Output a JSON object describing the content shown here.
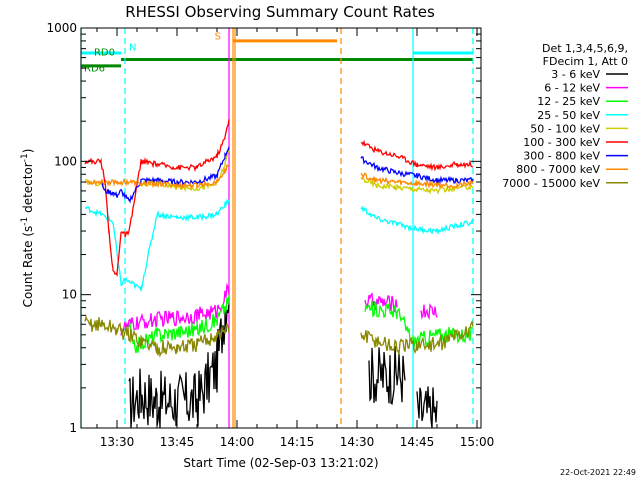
{
  "chart_data": {
    "type": "line",
    "title": "RHESSI Observing Summary Count Rates",
    "xlabel": "Start Time (02-Sep-03 13:21:02)",
    "ylabel": "Count Rate (s",
    "ylabel_sup1": "-1",
    "ylabel_mid": " detector",
    "ylabel_sup2": "-1",
    "ylabel_end": ")",
    "y_scale": "log",
    "xlim": [
      "13:21",
      "15:01"
    ],
    "ylim": [
      1,
      1000
    ],
    "x_ticks": [
      "13:30",
      "13:45",
      "14:00",
      "14:15",
      "14:30",
      "14:45",
      "15:00"
    ],
    "y_ticks": [
      "1",
      "10",
      "100",
      "1000"
    ],
    "grid": false,
    "legend_position": "right",
    "legend_header": [
      "Det 1,3,4,5,6,9,",
      "FDecim 1, Att 0"
    ],
    "series": [
      {
        "name": "3 - 6 keV",
        "color": "#000000",
        "x": [
          "13:21",
          "13:32",
          "13:33",
          "13:36",
          "13:40",
          "13:50",
          "13:55",
          "13:57",
          "13:58",
          "14:30",
          "14:33",
          "14:40",
          "14:42",
          "14:43",
          "14:45",
          "14:50"
        ],
        "values": [
          null,
          null,
          1.5,
          1.8,
          1.6,
          1.6,
          3,
          8,
          11,
          null,
          2.5,
          2.5,
          2.4,
          null,
          1.3,
          1.3
        ]
      },
      {
        "name": "6 - 12 keV",
        "color": "#ff00ff",
        "x": [
          "13:21",
          "13:26",
          "13:30",
          "13:31",
          "13:34",
          "13:40",
          "13:50",
          "13:55",
          "13:58",
          "14:30",
          "14:32",
          "14:40",
          "14:42",
          "14:46",
          "14:50"
        ],
        "values": [
          null,
          null,
          null,
          5.5,
          6,
          6.5,
          7,
          7.5,
          11,
          null,
          9,
          8.5,
          null,
          7.5,
          7.5
        ]
      },
      {
        "name": "12 - 25 keV",
        "color": "#00ff00",
        "x": [
          "13:21",
          "13:31",
          "13:33",
          "13:34",
          "13:40",
          "13:50",
          "13:55",
          "13:58",
          "14:30",
          "14:32",
          "14:40",
          "14:44",
          "14:50",
          "14:59"
        ],
        "values": [
          null,
          null,
          6,
          4,
          5,
          5.5,
          6.5,
          9,
          null,
          8,
          7.5,
          4.5,
          5,
          5
        ]
      },
      {
        "name": "25 - 50 keV",
        "color": "#00ffff",
        "x": [
          "13:21",
          "13:22",
          "13:26",
          "13:29",
          "13:31",
          "13:32",
          "13:34",
          "13:36",
          "13:40",
          "13:45",
          "13:50",
          "13:55",
          "13:57",
          "13:58",
          "14:30",
          "14:31",
          "14:35",
          "14:40",
          "14:45",
          "14:50",
          "14:55",
          "14:59"
        ],
        "values": [
          null,
          45,
          40,
          35,
          12,
          13,
          12,
          11,
          40,
          38,
          38,
          40,
          48,
          50,
          null,
          45,
          37,
          34,
          31,
          30,
          33,
          35
        ]
      },
      {
        "name": "50 - 100 keV",
        "color": "#cccc00",
        "x": [
          "13:21",
          "13:22",
          "13:26",
          "13:27",
          "13:30",
          "13:33",
          "13:36",
          "13:40",
          "13:45",
          "13:50",
          "13:55",
          "13:57",
          "13:58",
          "14:30",
          "14:31",
          "14:35",
          "14:40",
          "14:45",
          "14:50",
          "14:55",
          "14:59"
        ],
        "values": [
          null,
          70,
          68,
          60,
          null,
          null,
          68,
          68,
          64,
          63,
          68,
          95,
          120,
          null,
          75,
          66,
          64,
          62,
          60,
          63,
          65
        ]
      },
      {
        "name": "100 - 300 keV",
        "color": "#ff0000",
        "x": [
          "13:21",
          "13:22",
          "13:24",
          "13:26",
          "13:27",
          "13:28",
          "13:29",
          "13:30",
          "13:31",
          "13:32",
          "13:33",
          "13:36",
          "13:40",
          "13:45",
          "13:50",
          "13:55",
          "13:57",
          "13:58",
          "14:30",
          "14:31",
          "14:35",
          "14:40",
          "14:45",
          "14:50",
          "14:55",
          "14:59"
        ],
        "values": [
          null,
          100,
          100,
          100,
          70,
          30,
          15,
          14,
          30,
          28,
          29,
          100,
          95,
          90,
          90,
          110,
          150,
          210,
          null,
          140,
          120,
          110,
          95,
          90,
          95,
          95
        ]
      },
      {
        "name": "300 - 800 keV",
        "color": "#0000ff",
        "x": [
          "13:21",
          "13:25",
          "13:26",
          "13:27",
          "13:29",
          "13:30",
          "13:31",
          "13:33",
          "13:36",
          "13:40",
          "13:45",
          "13:50",
          "13:55",
          "13:57",
          "13:58",
          "14:30",
          "14:31",
          "14:35",
          "14:40",
          "14:45",
          "14:50",
          "14:55",
          "14:59"
        ],
        "values": [
          null,
          null,
          70,
          60,
          58,
          55,
          60,
          50,
          72,
          72,
          70,
          70,
          78,
          110,
          130,
          null,
          105,
          90,
          82,
          78,
          72,
          72,
          72
        ]
      },
      {
        "name": "800 - 7000 keV",
        "color": "#ff8800",
        "x": [
          "13:21",
          "13:22",
          "13:26",
          "13:30",
          "13:33",
          "13:36",
          "13:40",
          "13:45",
          "13:50",
          "13:55",
          "13:57",
          "13:58",
          "14:30",
          "14:31",
          "14:35",
          "14:40",
          "14:45",
          "14:50",
          "14:55",
          "14:59"
        ],
        "values": [
          null,
          70,
          70,
          70,
          70,
          68,
          68,
          66,
          66,
          70,
          85,
          95,
          null,
          80,
          72,
          70,
          68,
          67,
          66,
          68
        ]
      },
      {
        "name": "7000 - 15000 keV",
        "color": "#888800",
        "x": [
          "13:21",
          "13:22",
          "13:26",
          "13:30",
          "13:33",
          "13:36",
          "13:40",
          "13:45",
          "13:50",
          "13:55",
          "13:58",
          "14:30",
          "14:31",
          "14:35",
          "14:40",
          "14:45",
          "14:50",
          "14:55",
          "14:59"
        ],
        "values": [
          null,
          6,
          6,
          5.5,
          5,
          4.5,
          4,
          4,
          4.2,
          5,
          5.5,
          null,
          5,
          4.5,
          4,
          4.2,
          4.2,
          5,
          5.5
        ]
      }
    ],
    "markers": [
      {
        "label": "N",
        "color": "#00ffff"
      },
      {
        "label": "S",
        "color": "#ff8800"
      },
      {
        "label": "RD0",
        "color": "#008800"
      },
      {
        "label": "RD6",
        "color": "#008800"
      }
    ],
    "flag_bars": [
      {
        "name": "N",
        "color": "#00ffff",
        "y": 650,
        "ranges": [
          [
            "13:21",
            "13:31"
          ],
          [
            "14:44",
            "14:59"
          ]
        ]
      },
      {
        "name": "S",
        "color": "#ff8800",
        "y": 800,
        "ranges": [
          [
            "13:59",
            "14:25"
          ]
        ]
      },
      {
        "name": "RD0",
        "color": "#008800",
        "y": 580,
        "ranges": [
          [
            "13:31",
            "14:59"
          ]
        ]
      },
      {
        "name": "RD6",
        "color": "#008800",
        "y": 520,
        "ranges": [
          [
            "13:21",
            "13:31"
          ]
        ]
      }
    ],
    "v_lines": [
      {
        "x": "13:21",
        "color": "#00ffff",
        "style": "solid"
      },
      {
        "x": "13:32",
        "color": "#00ffff",
        "style": "dashed"
      },
      {
        "x": "13:58",
        "color": "#ff00ff",
        "style": "solid"
      },
      {
        "x": "13:59",
        "color": "#ff8800",
        "style": "solid"
      },
      {
        "x": "13:59",
        "color": "#ff8800",
        "style": "solid"
      },
      {
        "x": "14:26",
        "color": "#ff8800",
        "style": "dashed"
      },
      {
        "x": "14:44",
        "color": "#00ffff",
        "style": "solid"
      },
      {
        "x": "14:59",
        "color": "#00ffff",
        "style": "dashed"
      }
    ],
    "timestamp": "22-Oct-2021 22:49"
  }
}
